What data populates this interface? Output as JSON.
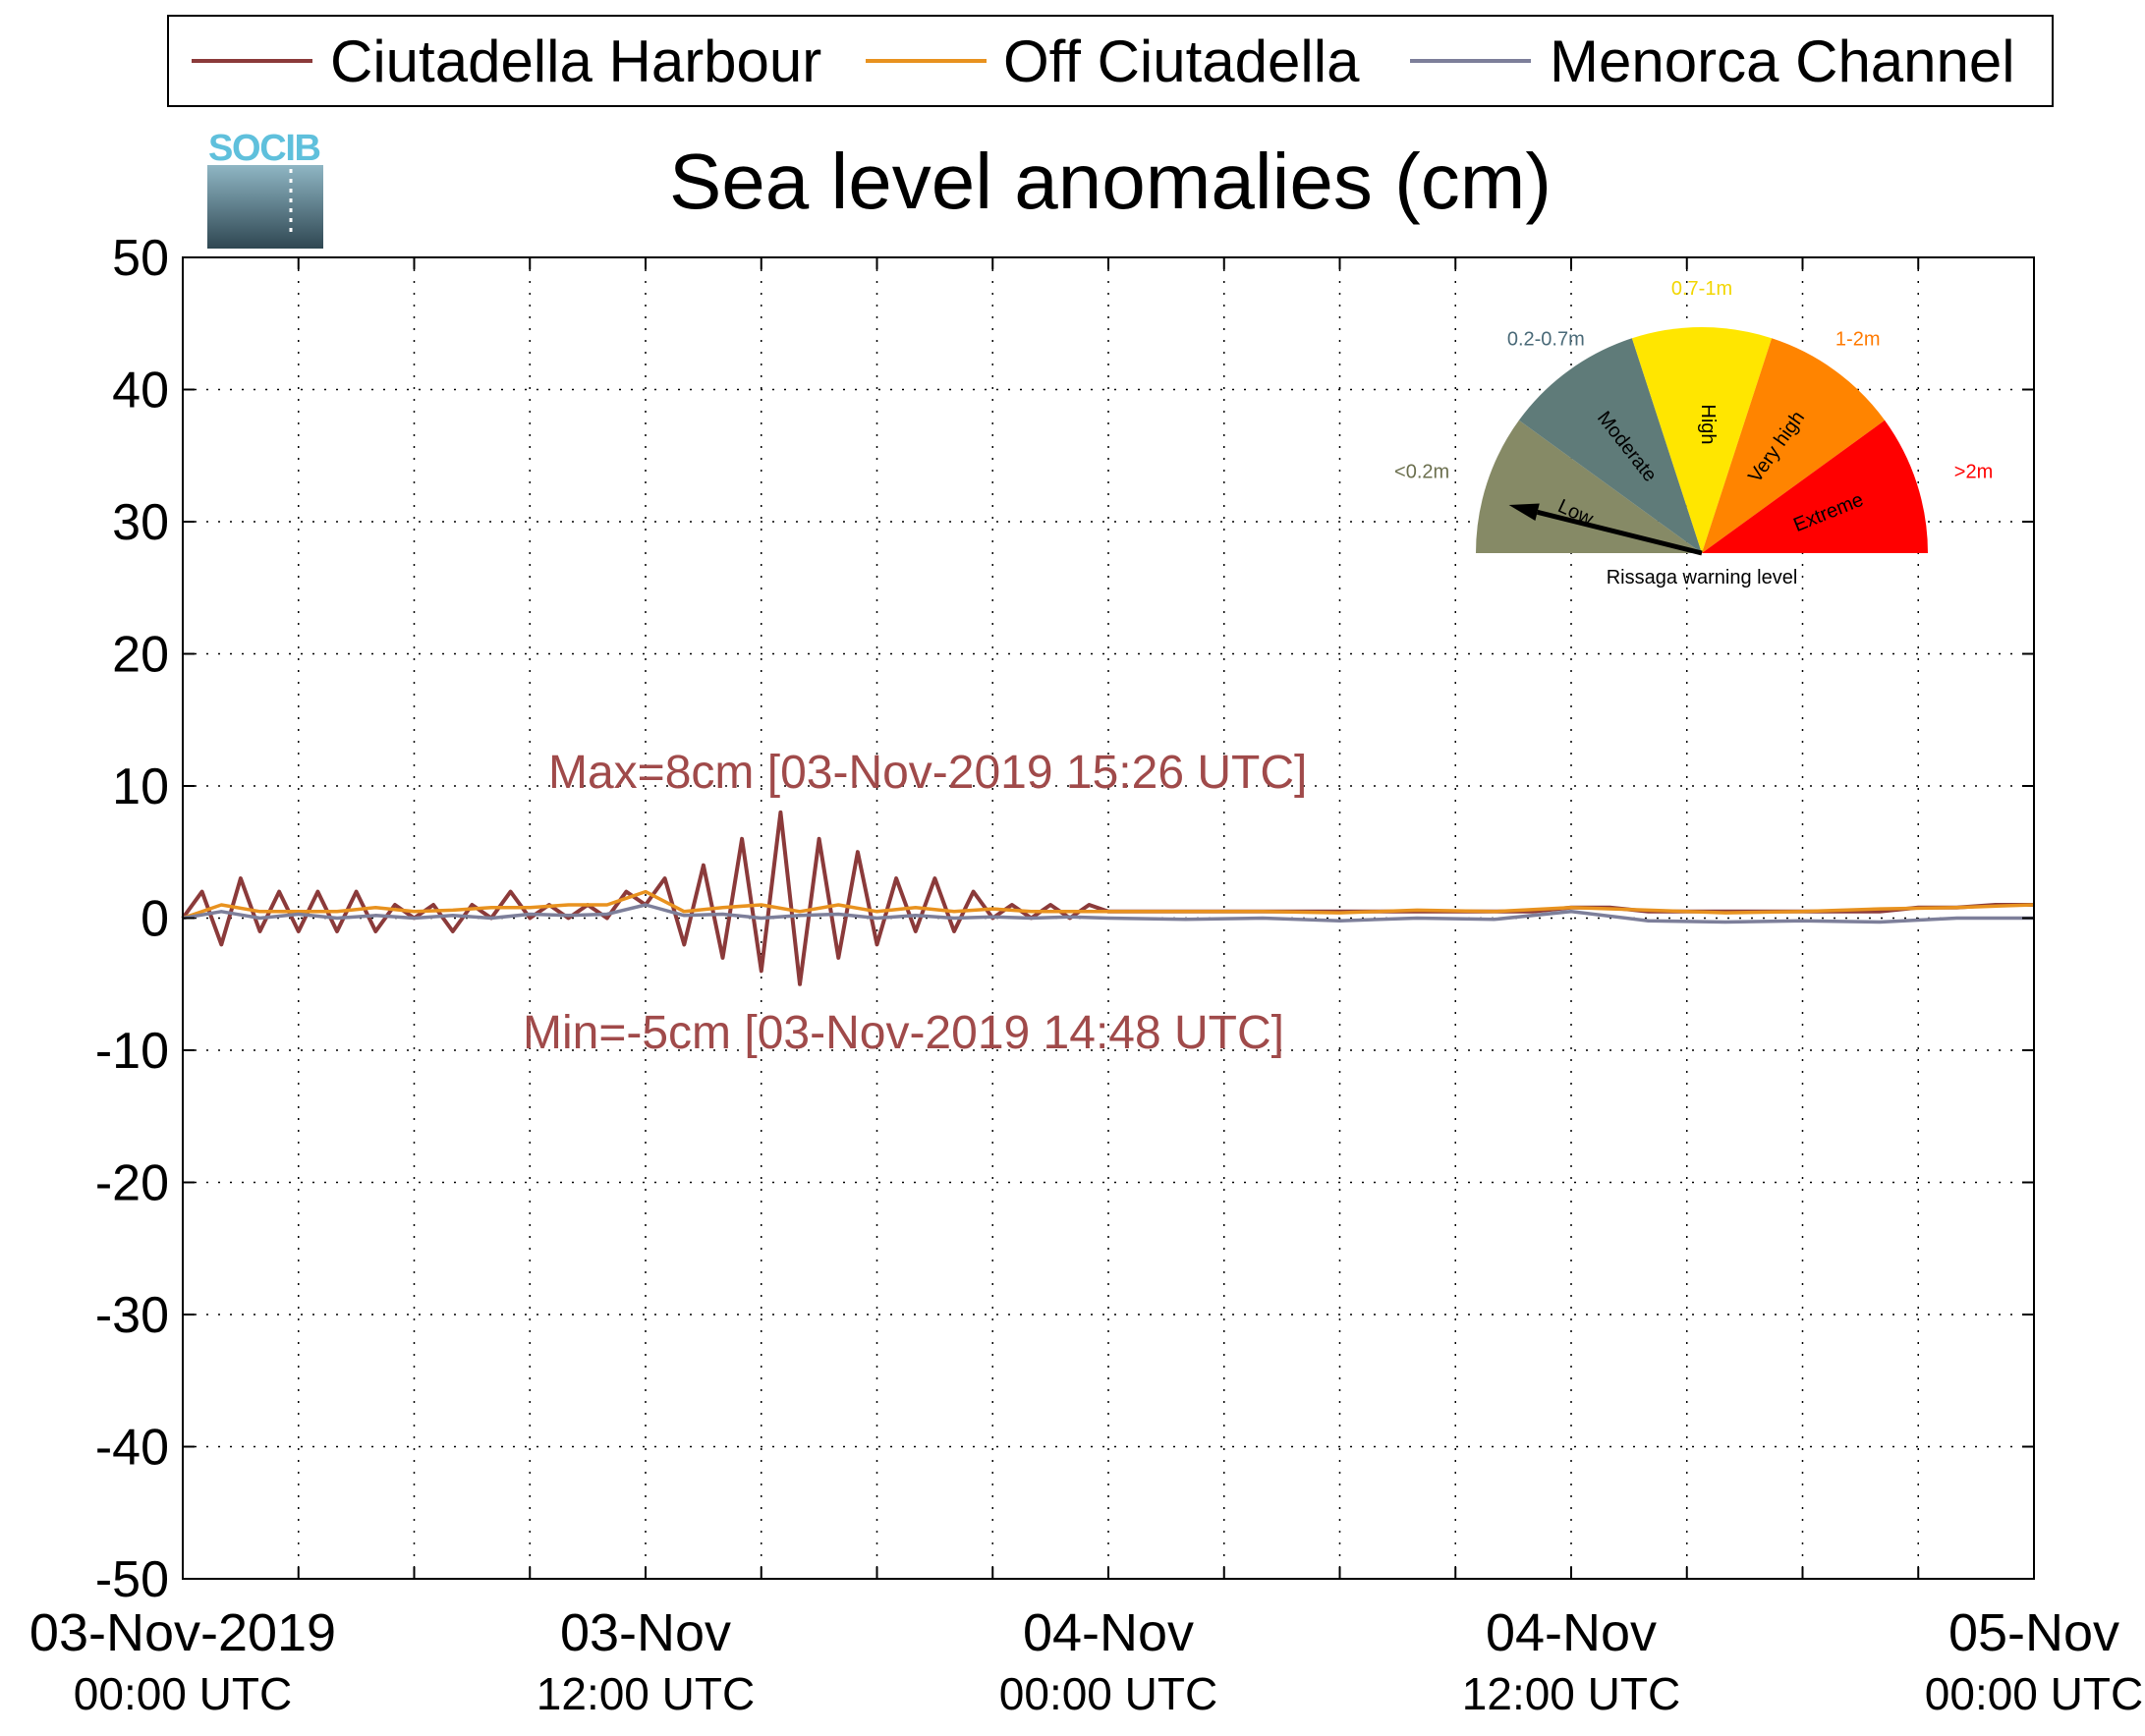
{
  "chart_data": {
    "type": "line",
    "title": "Sea level anomalies (cm)",
    "xlabel": "",
    "ylabel": "",
    "ylim": [
      -50,
      50
    ],
    "yticks": [
      50,
      40,
      30,
      20,
      10,
      0,
      -10,
      -20,
      -30,
      -40,
      -50
    ],
    "xlim_hours": [
      0,
      48
    ],
    "xticks": [
      {
        "hour": 0,
        "line1": "03-Nov-2019",
        "line2": "00:00 UTC"
      },
      {
        "hour": 12,
        "line1": "03-Nov",
        "line2": "12:00 UTC"
      },
      {
        "hour": 24,
        "line1": "04-Nov",
        "line2": "00:00 UTC"
      },
      {
        "hour": 36,
        "line1": "04-Nov",
        "line2": "12:00 UTC"
      },
      {
        "hour": 48,
        "line1": "05-Nov",
        "line2": "00:00 UTC"
      }
    ],
    "minor_tick_hours": [
      3,
      6,
      9,
      15,
      18,
      21,
      27,
      30,
      33,
      39,
      42,
      45
    ],
    "grid": true,
    "legend_position": "top",
    "series": [
      {
        "name": "Ciutadella Harbour",
        "color": "#8b3a3a",
        "x": [
          0,
          0.5,
          1,
          1.5,
          2,
          2.5,
          3,
          3.5,
          4,
          4.5,
          5,
          5.5,
          6,
          6.5,
          7,
          7.5,
          8,
          8.5,
          9,
          9.5,
          10,
          10.5,
          11,
          11.5,
          12,
          12.5,
          13,
          13.5,
          14,
          14.5,
          15,
          15.5,
          16,
          16.5,
          17,
          17.5,
          18,
          18.5,
          19,
          19.5,
          20,
          20.5,
          21,
          21.5,
          22,
          22.5,
          23,
          23.5,
          24,
          25,
          26,
          27,
          28,
          29,
          30,
          31,
          32,
          33,
          34,
          35,
          36,
          37,
          38,
          39,
          40,
          41,
          42,
          43,
          44,
          45,
          46,
          47,
          48
        ],
        "y": [
          0,
          2,
          -2,
          3,
          -1,
          2,
          -1,
          2,
          -1,
          2,
          -1,
          1,
          0,
          1,
          -1,
          1,
          0,
          2,
          0,
          1,
          0,
          1,
          0,
          2,
          1,
          3,
          -2,
          4,
          -3,
          6,
          -4,
          8,
          -5,
          6,
          -3,
          5,
          -2,
          3,
          -1,
          3,
          -1,
          2,
          0,
          1,
          0,
          1,
          0,
          1,
          0.5,
          0.5,
          0.5,
          0.5,
          0.5,
          0.5,
          0.5,
          0.5,
          0.5,
          0.5,
          0.5,
          0.5,
          0.8,
          0.8,
          0.5,
          0.5,
          0.5,
          0.5,
          0.5,
          0.5,
          0.5,
          0.8,
          0.8,
          1,
          1
        ]
      },
      {
        "name": "Off Ciutadella",
        "color": "#e8921f",
        "x": [
          0,
          1,
          2,
          3,
          4,
          5,
          6,
          7,
          8,
          9,
          10,
          11,
          12,
          13,
          14,
          15,
          16,
          17,
          18,
          19,
          20,
          21,
          22,
          23,
          24,
          26,
          28,
          30,
          32,
          34,
          36,
          38,
          40,
          42,
          44,
          46,
          48
        ],
        "y": [
          0,
          1,
          0.5,
          0.5,
          0.5,
          0.8,
          0.5,
          0.6,
          0.8,
          0.8,
          1,
          1,
          2,
          0.5,
          0.8,
          1,
          0.5,
          1,
          0.5,
          0.8,
          0.5,
          0.7,
          0.5,
          0.5,
          0.5,
          0.5,
          0.5,
          0.4,
          0.6,
          0.5,
          0.8,
          0.6,
          0.4,
          0.5,
          0.7,
          0.8,
          1
        ]
      },
      {
        "name": "Menorca Channel",
        "color": "#7d7f9a",
        "x": [
          0,
          1,
          2,
          3,
          4,
          5,
          6,
          7,
          8,
          9,
          10,
          11,
          12,
          13,
          14,
          15,
          16,
          17,
          18,
          19,
          20,
          21,
          22,
          23,
          24,
          26,
          28,
          30,
          32,
          34,
          36,
          38,
          40,
          42,
          44,
          46,
          48
        ],
        "y": [
          0,
          0.5,
          0,
          0.3,
          0,
          0.2,
          0,
          0.2,
          0,
          0.3,
          0.2,
          0.3,
          1,
          0.2,
          0.3,
          0,
          0.2,
          0.3,
          0,
          0.2,
          0,
          0.1,
          0,
          0.1,
          0,
          -0.1,
          0,
          -0.2,
          0,
          -0.1,
          0.5,
          -0.2,
          -0.3,
          -0.2,
          -0.3,
          0,
          0
        ]
      }
    ],
    "annotations": {
      "max": "Max=8cm [03-Nov-2019 15:26 UTC]",
      "min": "Min=-5cm [03-Nov-2019 14:48 UTC]"
    }
  },
  "logo": {
    "text": "SOCIB"
  },
  "gauge": {
    "caption": "Rissaga warning level",
    "pointer_level": "Low",
    "segments": [
      {
        "label": "Low",
        "range": "<0.2m",
        "color": "#868a66",
        "range_color": "#6b6f4e"
      },
      {
        "label": "Moderate",
        "range": "0.2-0.7m",
        "color": "#5f7b79",
        "range_color": "#4a6a78"
      },
      {
        "label": "High",
        "range": "0.7-1m",
        "color": "#ffe600",
        "range_color": "#f2d600"
      },
      {
        "label": "Very high",
        "range": "1-2m",
        "color": "#ff8400",
        "range_color": "#ff7a00"
      },
      {
        "label": "Extreme",
        "range": ">2m",
        "color": "#ff0000",
        "range_color": "#ff0000"
      }
    ]
  }
}
